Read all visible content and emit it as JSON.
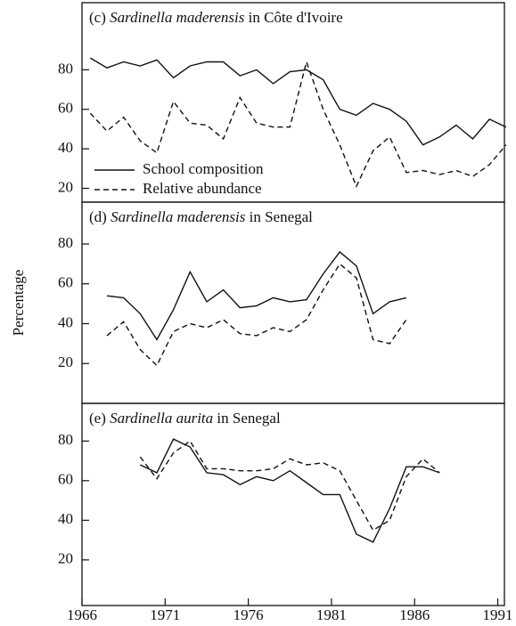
{
  "chart_data": [
    {
      "type": "line",
      "title": [
        "(c)",
        "Sardinella maderensis",
        "in Côte d'Ivoire"
      ],
      "x": [
        1966.5,
        1967.5,
        1968.5,
        1969.5,
        1970.5,
        1971.5,
        1972.5,
        1973.5,
        1974.5,
        1975.5,
        1976.5,
        1977.5,
        1978.5,
        1979.5,
        1980.5,
        1981.5,
        1982.5,
        1983.5,
        1984.5,
        1985.5,
        1986.5,
        1987.5,
        1988.5,
        1989.5,
        1990.5,
        1991.5
      ],
      "series": [
        {
          "name": "School composition",
          "color": "#111111",
          "style": "solid",
          "values": [
            86,
            81,
            84,
            82,
            85,
            76,
            82,
            84,
            84,
            77,
            80,
            73,
            79,
            80,
            75,
            60,
            57,
            63,
            60,
            54,
            42,
            46,
            52,
            45,
            55,
            51
          ]
        },
        {
          "name": "Relative abundance",
          "color": "#111111",
          "style": "dashed",
          "values": [
            58,
            49,
            56,
            44,
            38,
            64,
            53,
            52,
            45,
            66,
            53,
            51,
            51,
            84,
            60,
            42,
            21,
            39,
            46,
            28,
            29,
            27,
            29,
            26,
            32,
            42
          ]
        }
      ],
      "legend": "lower left",
      "xlim": [
        1966,
        1991.4
      ],
      "ylim": [
        13,
        114
      ],
      "yticks": [
        20,
        40,
        60,
        80
      ]
    },
    {
      "type": "line",
      "title": [
        "(d)",
        "Sardinella maderensis",
        "in Senegal"
      ],
      "y_label": "Percentage",
      "x": [
        1967.5,
        1968.5,
        1969.5,
        1970.5,
        1971.5,
        1972.5,
        1973.5,
        1974.5,
        1975.5,
        1976.5,
        1977.5,
        1978.5,
        1979.5,
        1980.5,
        1981.5,
        1982.5,
        1983.5,
        1984.5,
        1985.5
      ],
      "series": [
        {
          "color": "#111111",
          "style": "solid",
          "values": [
            54,
            53,
            45,
            32,
            47,
            66,
            51,
            57,
            48,
            49,
            53,
            51,
            52,
            65,
            76,
            69,
            45,
            51,
            53
          ]
        },
        {
          "color": "#111111",
          "style": "dashed",
          "values": [
            34,
            41,
            27,
            19,
            36,
            40,
            38,
            42,
            35,
            34,
            38,
            36,
            42,
            57,
            70,
            63,
            32,
            30,
            42
          ]
        }
      ],
      "xlim": [
        1966,
        1991.4
      ],
      "ylim": [
        0,
        101
      ],
      "yticks": [
        20,
        40,
        60,
        80
      ]
    },
    {
      "type": "line",
      "title": [
        "(e)",
        "Sardinella aurita",
        "in Senegal"
      ],
      "x": [
        1969.5,
        1970.5,
        1971.5,
        1972.5,
        1973.5,
        1974.5,
        1975.5,
        1976.5,
        1977.5,
        1978.5,
        1979.5,
        1980.5,
        1981.5,
        1982.5,
        1983.5,
        1984.5,
        1985.5,
        1986.5,
        1987.5
      ],
      "series": [
        {
          "color": "#111111",
          "style": "solid",
          "values": [
            68,
            64,
            81,
            77,
            64,
            63,
            58,
            62,
            60,
            65,
            59,
            53,
            53,
            33,
            29,
            46,
            67,
            67,
            64
          ]
        },
        {
          "color": "#111111",
          "style": "dashed",
          "values": [
            72,
            61,
            74,
            80,
            66,
            66,
            65,
            65,
            66,
            71,
            68,
            69,
            65,
            50,
            35,
            40,
            62,
            71,
            64
          ]
        }
      ],
      "xlim": [
        1966,
        1991.4
      ],
      "ylim": [
        -3,
        99
      ],
      "yticks": [
        20,
        40,
        60,
        80
      ],
      "xticks": [
        1966,
        1971,
        1976,
        1981,
        1986,
        1991
      ]
    }
  ]
}
